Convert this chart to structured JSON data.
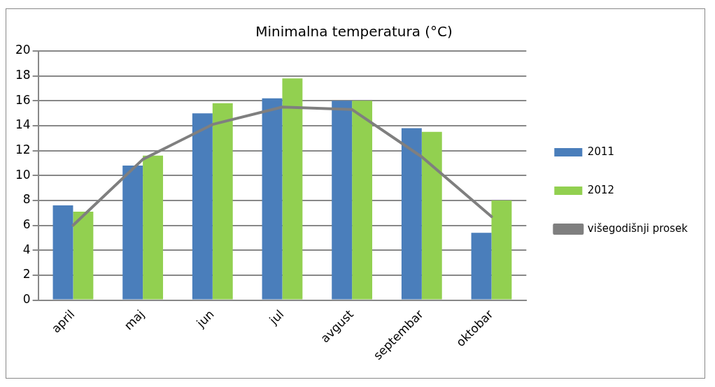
{
  "chart_data": {
    "type": "bar",
    "title": "Minimalna temperatura (°C)",
    "categories": [
      "april",
      "maj",
      "jun",
      "jul",
      "avgust",
      "septembar",
      "oktobar"
    ],
    "series": [
      {
        "name": "2011",
        "color": "#4a7ebb",
        "values": [
          7.6,
          10.8,
          15.0,
          16.2,
          16.0,
          13.8,
          5.4
        ]
      },
      {
        "name": "2012",
        "color": "#92d050",
        "values": [
          7.1,
          11.6,
          15.8,
          17.8,
          16.0,
          13.5,
          8.0
        ]
      },
      {
        "name": "višegodišnji prosek",
        "type": "line",
        "color": "#7f7f7f",
        "values": [
          6.0,
          11.3,
          14.1,
          15.5,
          15.3,
          11.5,
          6.7
        ]
      }
    ],
    "ylim": [
      0,
      20
    ],
    "yticks": [
      0,
      2,
      4,
      6,
      8,
      10,
      12,
      14,
      16,
      18,
      20
    ],
    "grid": "y",
    "legend": "right",
    "marker": "none",
    "line_style": "solid"
  }
}
